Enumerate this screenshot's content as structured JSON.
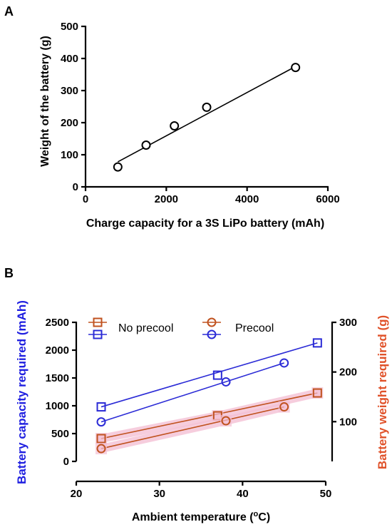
{
  "chart_data": [
    {
      "panel": "A",
      "type": "scatter",
      "xlabel": "Charge capacity for a 3S LiPo battery (mAh)",
      "ylabel": "Weight of the battery (g)",
      "xlim": [
        0,
        6000
      ],
      "ylim": [
        0,
        500
      ],
      "xticks": [
        "0",
        "2000",
        "4000",
        "6000"
      ],
      "yticks": [
        "0",
        "100",
        "200",
        "300",
        "400",
        "500"
      ],
      "points": [
        {
          "x": 800,
          "y": 62
        },
        {
          "x": 1500,
          "y": 130
        },
        {
          "x": 2200,
          "y": 190
        },
        {
          "x": 3000,
          "y": 248
        },
        {
          "x": 5200,
          "y": 372
        }
      ],
      "fit_line": {
        "x": [
          800,
          5200
        ],
        "y": [
          78,
          375
        ]
      },
      "marker_color": "#000000",
      "grid": false
    },
    {
      "panel": "B",
      "type": "line",
      "xlabel_main": "Ambient temperature (",
      "xlabel_sup": "o",
      "xlabel_tail": "C)",
      "ylabel_left": "Battery capacity required (mAh)",
      "ylabel_right": "Battery weight required (g)",
      "xlim": [
        20,
        50
      ],
      "ylim_left": [
        0,
        2500
      ],
      "ylim_right": [
        20,
        300
      ],
      "xticks": [
        "20",
        "30",
        "40",
        "50"
      ],
      "yticks_left": [
        "0",
        "500",
        "1000",
        "1500",
        "2000",
        "2500"
      ],
      "yticks_right": [
        "100",
        "200",
        "300"
      ],
      "colors": {
        "capacity": "#2b2bd6",
        "weight": "#c0521f",
        "halo": "#f4c0d4",
        "left_axis_label": "#2020e0",
        "right_axis_label": "#e0522a"
      },
      "legend": {
        "no_precool": "No precool",
        "precool": "Precool",
        "position": "top"
      },
      "series": [
        {
          "marker": "square",
          "axis": "left",
          "color": "capacity",
          "x": [
            23,
            37,
            49
          ],
          "y": [
            980,
            1550,
            2130
          ]
        },
        {
          "marker": "circle",
          "axis": "left",
          "color": "capacity",
          "x": [
            23,
            38,
            45
          ],
          "y": [
            710,
            1430,
            1770
          ]
        },
        {
          "marker": "square",
          "axis": "left",
          "color": "weight",
          "x": [
            23,
            37,
            49
          ],
          "y": [
            410,
            820,
            1230
          ]
        },
        {
          "marker": "circle",
          "axis": "left",
          "color": "weight",
          "x": [
            23,
            38,
            45
          ],
          "y": [
            230,
            730,
            980
          ]
        }
      ],
      "grid": false
    }
  ]
}
